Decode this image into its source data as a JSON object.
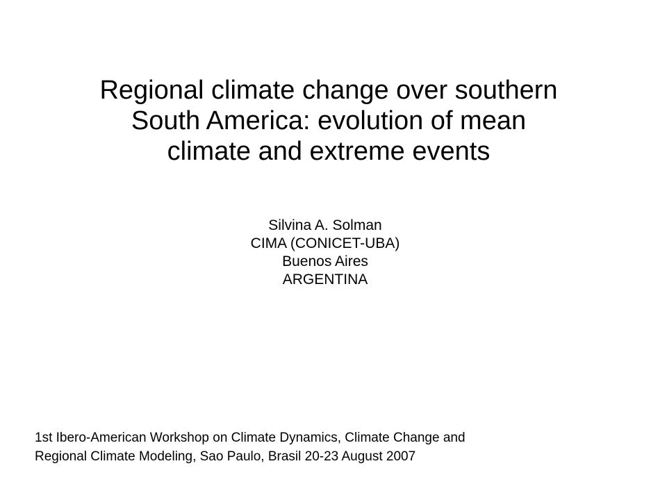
{
  "title": {
    "lines": [
      "Regional climate change over southern",
      "South America: evolution of mean",
      "climate and extreme events"
    ]
  },
  "author": {
    "lines": [
      "Silvina A. Solman",
      "CIMA (CONICET-UBA)",
      "Buenos Aires",
      "ARGENTINA"
    ]
  },
  "footer": {
    "lines": [
      "1st Ibero-American Workshop on Climate Dynamics, Climate Change and",
      "Regional Climate Modeling, Sao Paulo, Brasil 20-23 August 2007"
    ]
  }
}
